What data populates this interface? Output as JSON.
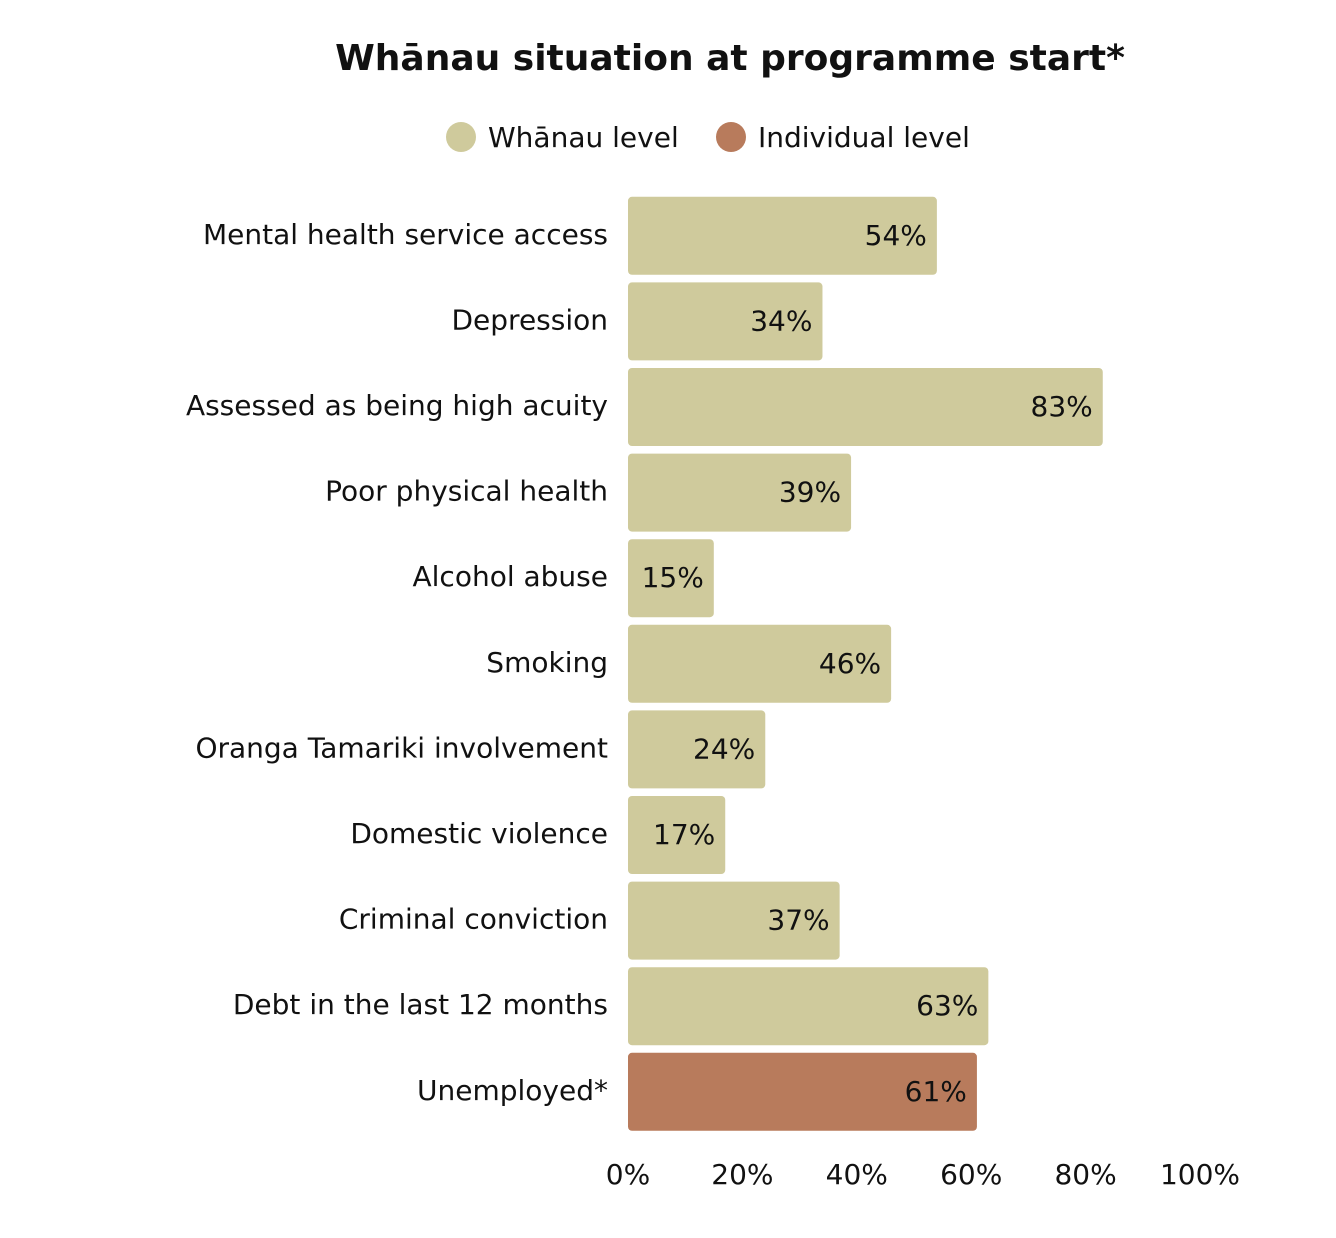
{
  "chart_data": {
    "type": "bar",
    "orientation": "horizontal",
    "title": "Whānau situation at programme start*",
    "categories": [
      "Mental health service access",
      "Depression",
      "Assessed as being high acuity",
      "Poor physical health",
      "Alcohol abuse",
      "Smoking",
      "Oranga Tamariki involvement",
      "Domestic violence",
      "Criminal conviction",
      "Debt in the last 12 months",
      "Unemployed*"
    ],
    "series": [
      {
        "name": "Whānau level",
        "color": "#cfca9c",
        "values": [
          54,
          34,
          83,
          39,
          15,
          46,
          24,
          17,
          37,
          63,
          null
        ],
        "value_labels": [
          "54%",
          "34%",
          "83%",
          "39%",
          "15%",
          "46%",
          "24%",
          "17%",
          "37%",
          "63%",
          null
        ]
      },
      {
        "name": "Individual level",
        "color": "#b87b5c",
        "values": [
          null,
          null,
          null,
          null,
          null,
          null,
          null,
          null,
          null,
          null,
          61
        ],
        "value_labels": [
          null,
          null,
          null,
          null,
          null,
          null,
          null,
          null,
          null,
          null,
          "61%"
        ]
      }
    ],
    "xlim": [
      0,
      100
    ],
    "xticks": [
      {
        "value": 0,
        "label": "0%"
      },
      {
        "value": 20,
        "label": "20%"
      },
      {
        "value": 40,
        "label": "40%"
      },
      {
        "value": 60,
        "label": "60%"
      },
      {
        "value": 80,
        "label": "80%"
      },
      {
        "value": 100,
        "label": "100%"
      }
    ],
    "grid": false,
    "legend": "top"
  }
}
